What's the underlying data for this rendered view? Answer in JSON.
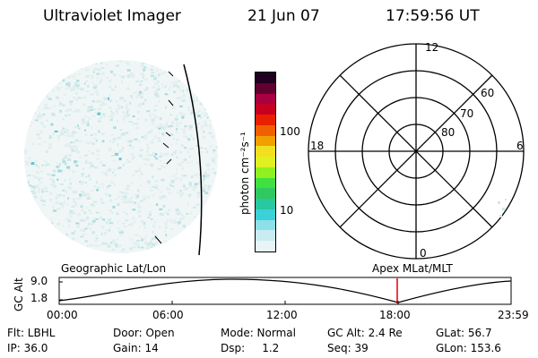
{
  "header": {
    "instrument": "Ultraviolet Imager",
    "date": "21 Jun 07",
    "time": "17:59:56 UT"
  },
  "colorbar": {
    "label": "photon cm⁻²s⁻¹",
    "ticks": [
      "100",
      "10"
    ],
    "colors": [
      "#e8f4f8",
      "#c8ecf0",
      "#8ee0e8",
      "#3cd0d8",
      "#28c8a0",
      "#30c860",
      "#40e040",
      "#90f020",
      "#e0f020",
      "#f0e020",
      "#f0a000",
      "#f06000",
      "#e82000",
      "#c80020",
      "#a80040",
      "#600030",
      "#200020"
    ]
  },
  "polar": {
    "labels": {
      "top": "12",
      "bottom": "0",
      "left": "18",
      "right": "6"
    },
    "lat_labels": [
      "60",
      "70",
      "80"
    ]
  },
  "altitude_plot": {
    "ylabel": "GC Alt",
    "yticks": [
      "9.0",
      "1.8"
    ],
    "left_title": "Geographic Lat/Lon",
    "right_title": "Apex MLat/MLT",
    "xticks": [
      "00:00",
      "06:00",
      "12:00",
      "18:00",
      "23:59"
    ],
    "marker_color": "#e00000"
  },
  "info": {
    "row1": {
      "flt": "Flt: LBHL",
      "door": "Door: Open",
      "mode": "Mode: Normal",
      "gcalt": "GC Alt: 2.4 Re",
      "glat": "GLat:  56.7"
    },
    "row2": {
      "ip": "IP: 36.0",
      "gain": "Gain: 14",
      "dsp": "Dsp:     1.2",
      "seq": "Seq: 39",
      "glon": "GLon: 153.6"
    }
  }
}
